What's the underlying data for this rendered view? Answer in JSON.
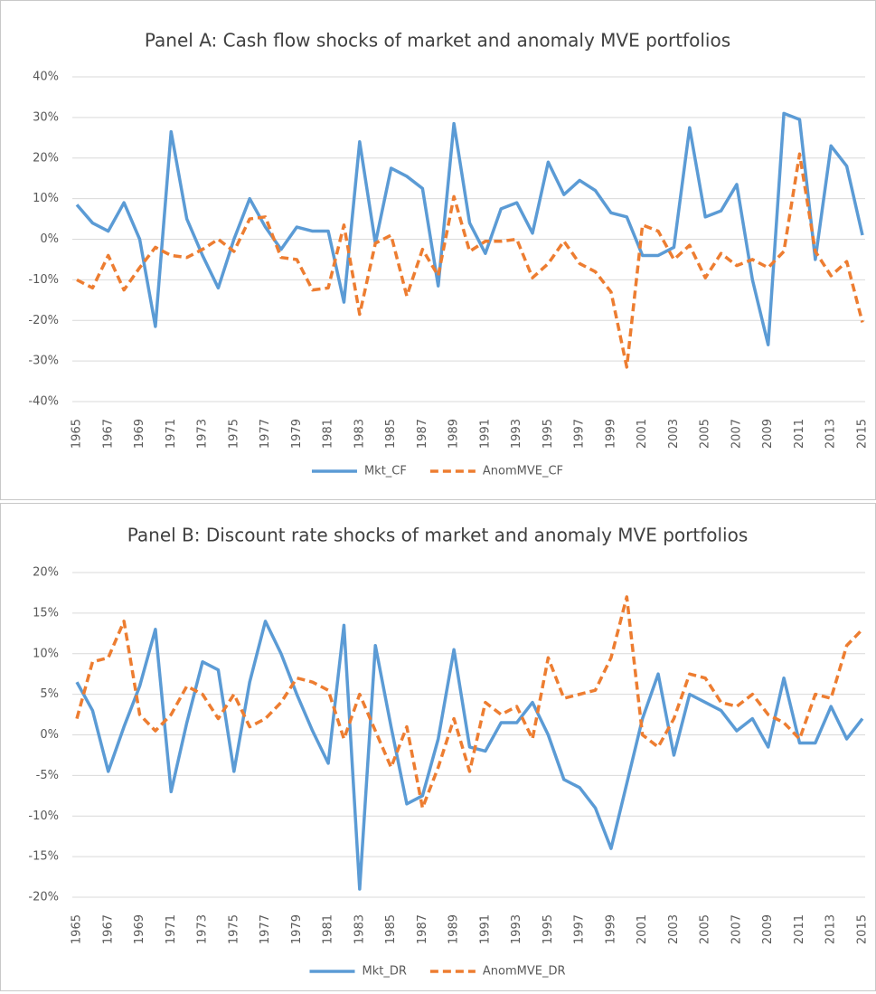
{
  "chart_data": [
    {
      "type": "line",
      "title": "Panel A: Cash flow shocks of market and anomaly MVE portfolios",
      "categories": [
        "1965",
        null,
        "1967",
        null,
        "1969",
        null,
        "1971",
        null,
        "1973",
        null,
        "1975",
        null,
        "1977",
        null,
        "1979",
        null,
        "1981",
        null,
        "1983",
        null,
        "1985",
        null,
        "1987",
        null,
        "1989",
        null,
        "1991",
        null,
        "1993",
        null,
        "1995",
        null,
        "1997",
        null,
        "1999",
        null,
        "2001",
        null,
        "2003",
        null,
        "2005",
        null,
        "2007",
        null,
        "2009",
        null,
        "2011",
        null,
        "2013",
        null,
        "2015"
      ],
      "series": [
        {
          "name": "Mkt_CF",
          "color": "#5b9bd5",
          "dashed": false,
          "values": [
            8.5,
            4,
            2,
            9,
            0,
            -21.5,
            26.5,
            5,
            -4,
            -12,
            0,
            10,
            3,
            -2.5,
            3,
            2,
            2,
            -15.5,
            24,
            -1,
            17.5,
            15.5,
            12.5,
            -11.5,
            28.5,
            4,
            -3.5,
            7.5,
            9,
            1.5,
            19,
            11,
            14.5,
            12,
            6.5,
            5.5,
            -4,
            -4,
            -2,
            27.5,
            5.5,
            7,
            13.5,
            -10,
            -26,
            31,
            29.5,
            -5,
            23,
            18,
            1
          ]
        },
        {
          "name": "AnomMVE_CF",
          "color": "#ed7d31",
          "dashed": true,
          "values": [
            -10,
            -12,
            -4,
            -12.5,
            -7,
            -2,
            -4,
            -4.5,
            -2.5,
            0,
            -3,
            5,
            5.5,
            -4.5,
            -5,
            -12.5,
            -12,
            3.5,
            -18.5,
            -1,
            1,
            -14,
            -2.5,
            -9,
            10.5,
            -3,
            -0.5,
            -0.5,
            0,
            -9.5,
            -6,
            -0.5,
            -6,
            -8,
            -13,
            -31.5,
            3.5,
            2,
            -5,
            -1.5,
            -9.5,
            -3.5,
            -6.5,
            -5,
            -7,
            -3,
            21,
            -3,
            -9,
            -5.5,
            -20.5
          ]
        }
      ],
      "ylim": [
        -40,
        40
      ],
      "yticks": [
        {
          "value": -40,
          "label": "-40%"
        },
        {
          "value": -30,
          "label": "-30%"
        },
        {
          "value": -20,
          "label": "-20%"
        },
        {
          "value": -10,
          "label": "-10%"
        },
        {
          "value": 0,
          "label": "0%"
        },
        {
          "value": 10,
          "label": "10%"
        },
        {
          "value": 20,
          "label": "20%"
        },
        {
          "value": 30,
          "label": "30%"
        },
        {
          "value": 40,
          "label": "40%"
        }
      ],
      "grid": true,
      "legend": "bottom"
    },
    {
      "type": "line",
      "title": "Panel B: Discount rate shocks of market and anomaly MVE portfolios",
      "categories": [
        "1965",
        null,
        "1967",
        null,
        "1969",
        null,
        "1971",
        null,
        "1973",
        null,
        "1975",
        null,
        "1977",
        null,
        "1979",
        null,
        "1981",
        null,
        "1983",
        null,
        "1985",
        null,
        "1987",
        null,
        "1989",
        null,
        "1991",
        null,
        "1993",
        null,
        "1995",
        null,
        "1997",
        null,
        "1999",
        null,
        "2001",
        null,
        "2003",
        null,
        "2005",
        null,
        "2007",
        null,
        "2009",
        null,
        "2011",
        null,
        "2013",
        null,
        "2015"
      ],
      "series": [
        {
          "name": "Mkt_DR",
          "color": "#5b9bd5",
          "dashed": false,
          "values": [
            6.5,
            3,
            -4.5,
            1,
            6,
            13,
            -7,
            1.5,
            9,
            8,
            -4.5,
            6.5,
            14,
            10,
            5,
            0.5,
            -3.5,
            13.5,
            -19,
            11,
            1,
            -8.5,
            -7.5,
            -0.5,
            10.5,
            -1.5,
            -2,
            1.5,
            1.5,
            4,
            0,
            -5.5,
            -6.5,
            -9,
            -14,
            -6,
            2,
            7.5,
            -2.5,
            5,
            4,
            3,
            0.5,
            2,
            -1.5,
            7,
            -1,
            -1,
            3.5,
            -0.5,
            2
          ]
        },
        {
          "name": "AnomMVE_DR",
          "color": "#ed7d31",
          "dashed": true,
          "values": [
            2,
            9,
            9.5,
            14,
            2.5,
            0.5,
            2.5,
            6,
            5,
            2,
            5,
            1,
            2,
            4,
            7,
            6.5,
            5.5,
            -0.5,
            5,
            0.5,
            -4,
            1,
            -9,
            -4,
            2,
            -4.5,
            4,
            2.5,
            3.5,
            -0.5,
            9.5,
            4.5,
            5,
            5.5,
            9.5,
            17,
            0,
            -1.5,
            2,
            7.5,
            7,
            4,
            3.5,
            5,
            2.5,
            1.5,
            -0.5,
            5,
            4.5,
            11,
            13
          ]
        }
      ],
      "ylim": [
        -20,
        20
      ],
      "yticks": [
        {
          "value": -20,
          "label": "-20%"
        },
        {
          "value": -15,
          "label": "-15%"
        },
        {
          "value": -10,
          "label": "-10%"
        },
        {
          "value": -5,
          "label": "-5%"
        },
        {
          "value": 0,
          "label": "0%"
        },
        {
          "value": 5,
          "label": "5%"
        },
        {
          "value": 10,
          "label": "10%"
        },
        {
          "value": 15,
          "label": "15%"
        },
        {
          "value": 20,
          "label": "20%"
        }
      ],
      "grid": true,
      "legend": "bottom"
    }
  ]
}
